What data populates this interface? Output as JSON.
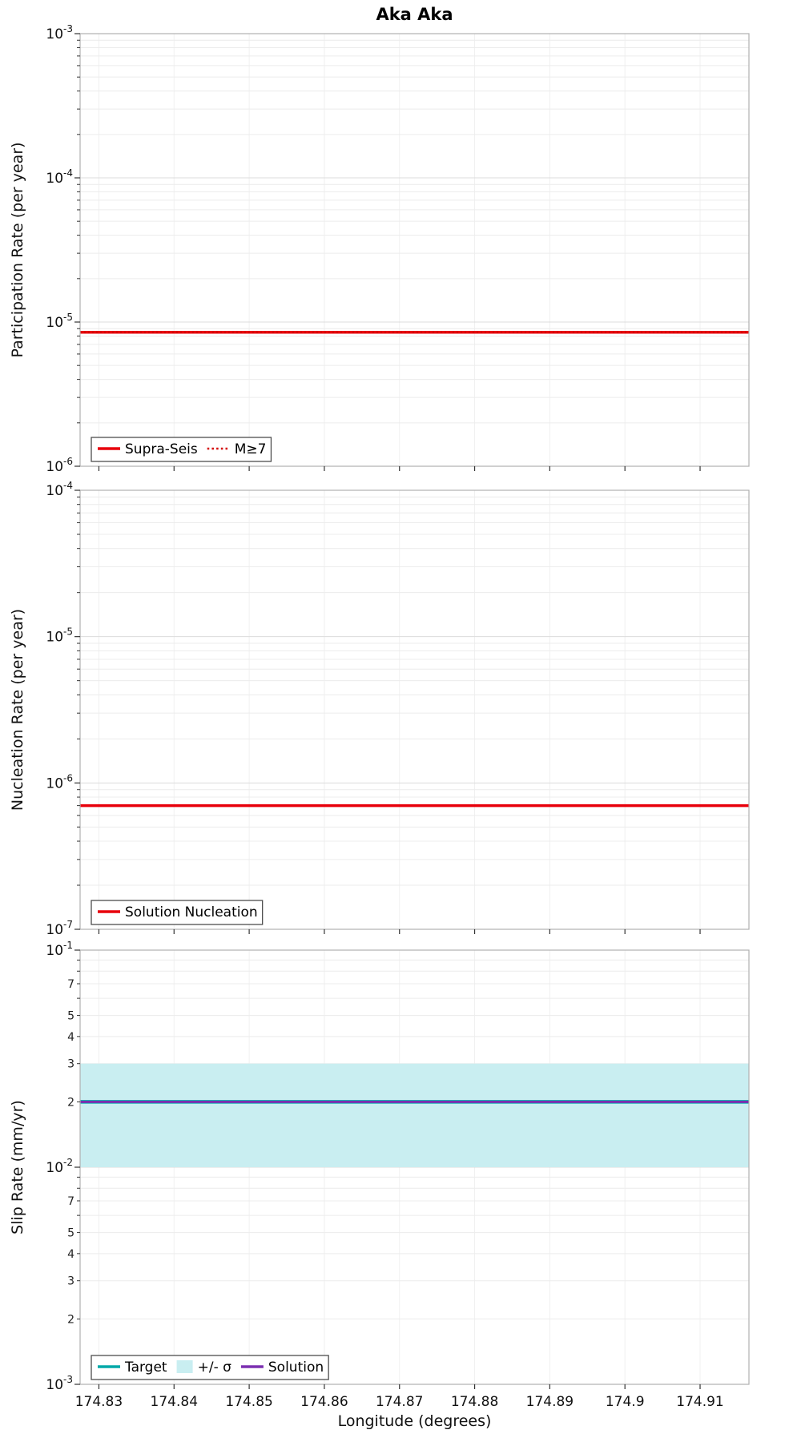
{
  "title": "Aka Aka",
  "xlabel": "Longitude (degrees)",
  "x_axis": {
    "min": 174.8275,
    "max": 174.9165,
    "ticks": [
      {
        "v": 174.83,
        "label": "174.83"
      },
      {
        "v": 174.84,
        "label": "174.84"
      },
      {
        "v": 174.85,
        "label": "174.85"
      },
      {
        "v": 174.86,
        "label": "174.86"
      },
      {
        "v": 174.87,
        "label": "174.87"
      },
      {
        "v": 174.88,
        "label": "174.88"
      },
      {
        "v": 174.89,
        "label": "174.89"
      },
      {
        "v": 174.9,
        "label": "174.9"
      },
      {
        "v": 174.91,
        "label": "174.91"
      }
    ]
  },
  "colors": {
    "red": "#e8000b",
    "dark_red": "#d40000",
    "teal": "#00a8a8",
    "purple": "#7b2fb0",
    "band_cyan": "#c9eef1",
    "grid_major": "#dcdcdc",
    "grid_minor": "#ececec",
    "grid_vertical": "#f0f0f0",
    "frame": "#b0b0b0"
  },
  "chart_data": [
    {
      "type": "line",
      "ylabel": "Participation Rate (per year)",
      "yscale": "log",
      "ylim": [
        1e-06,
        0.001
      ],
      "x_range": [
        174.8275,
        174.9165
      ],
      "series": [
        {
          "name": "Supra-Seis",
          "color": "#e8000b",
          "width": 3.5,
          "y": 8.5e-06
        },
        {
          "name": "M≥7",
          "color": "#d40000",
          "width": 2.6,
          "dash": "2 3",
          "y": 8.5e-06
        }
      ],
      "legend": [
        {
          "label": "Supra-Seis",
          "type": "line",
          "color": "#e8000b"
        },
        {
          "label": "M≥7",
          "type": "line",
          "color": "#d40000",
          "dash": "2.5 3.2"
        }
      ]
    },
    {
      "type": "line",
      "ylabel": "Nucleation Rate (per year)",
      "yscale": "log",
      "ylim": [
        1e-07,
        0.0001
      ],
      "x_range": [
        174.8275,
        174.9165
      ],
      "series": [
        {
          "name": "Solution Nucleation",
          "color": "#e8000b",
          "width": 3.5,
          "y": 7e-07
        }
      ],
      "legend": [
        {
          "label": "Solution Nucleation",
          "type": "line",
          "color": "#e8000b"
        }
      ]
    },
    {
      "type": "line",
      "ylabel": "Slip Rate (mm/yr)",
      "yscale": "log",
      "ylim": [
        0.001,
        0.1
      ],
      "x_range": [
        174.8275,
        174.9165
      ],
      "band": {
        "label": "+/- σ",
        "low": 0.01,
        "high": 0.03,
        "color": "#c9eef1"
      },
      "series": [
        {
          "name": "Target",
          "color": "#00a8a8",
          "width": 4.5,
          "y": 0.02
        },
        {
          "name": "Solution",
          "color": "#7b2fb0",
          "width": 2.8,
          "y": 0.02
        }
      ],
      "minor_tick_labels": [
        2,
        3,
        4,
        5,
        7
      ],
      "legend": [
        {
          "label": "Target",
          "type": "line",
          "color": "#00a8a8"
        },
        {
          "label": "+/- σ",
          "type": "patch",
          "color": "#c9eef1"
        },
        {
          "label": "Solution",
          "type": "line",
          "color": "#7b2fb0"
        }
      ]
    }
  ]
}
